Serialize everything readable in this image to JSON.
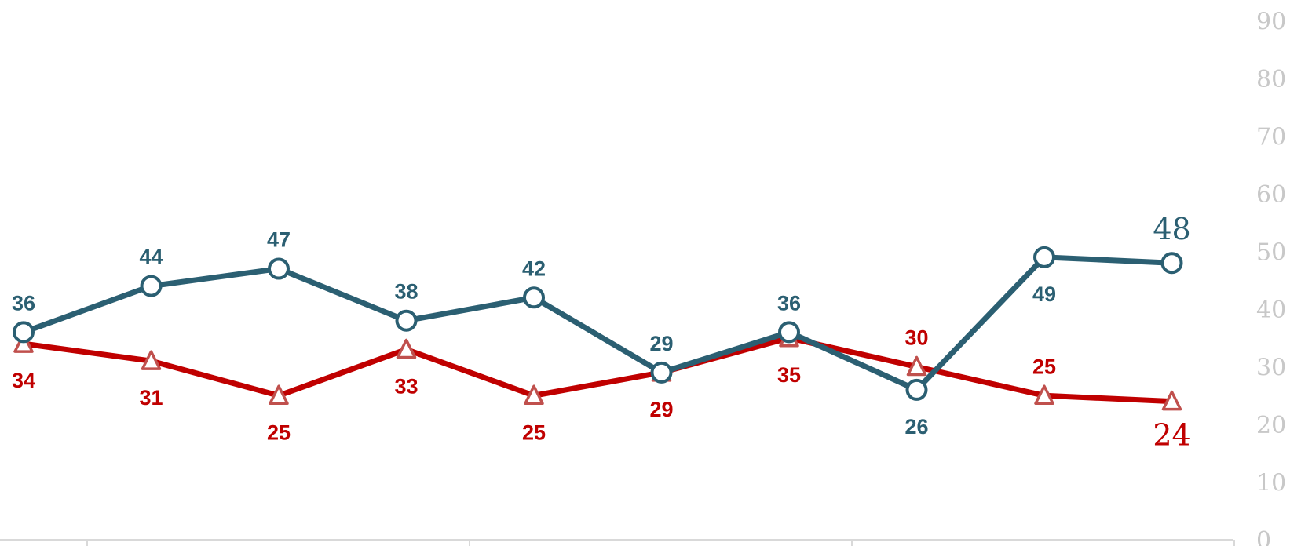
{
  "chart_data": {
    "type": "line",
    "title": "",
    "xlabel": "",
    "ylabel": "",
    "ylim": [
      0,
      90
    ],
    "yticks": [
      "0",
      "10",
      "20",
      "30",
      "40",
      "50",
      "60",
      "70",
      "80",
      "90"
    ],
    "y_axis_position": "right",
    "grid": false,
    "legend": "none",
    "x": [
      1,
      2,
      3,
      4,
      5,
      6,
      7,
      8,
      9,
      10
    ],
    "series": [
      {
        "color": "#2b5f72",
        "marker": "circle",
        "values": [
          36,
          44,
          47,
          38,
          42,
          29,
          36,
          26,
          49,
          48
        ],
        "labels": [
          "36",
          "44",
          "47",
          "38",
          "42",
          "29",
          "36",
          "26",
          "49",
          "48"
        ]
      },
      {
        "color": "#c00000",
        "marker": "triangle",
        "values": [
          34,
          31,
          25,
          33,
          25,
          29,
          35,
          30,
          25,
          24
        ],
        "labels": [
          "34",
          "31",
          "25",
          "33",
          "25",
          "29",
          "35",
          "30",
          "25",
          "24"
        ]
      }
    ]
  }
}
